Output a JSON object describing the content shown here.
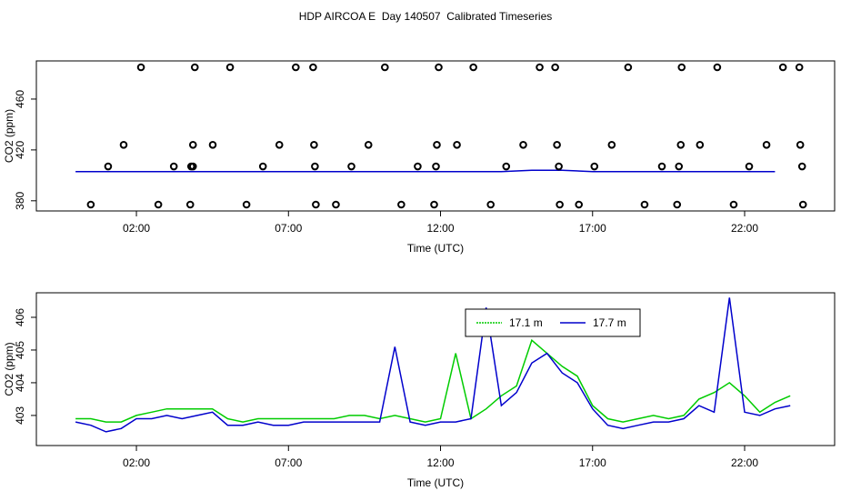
{
  "chart_data": [
    {
      "type": "scatter",
      "title": "HDP AIRCOA E  Day 140507  Calibrated Timeseries",
      "x_label": "Time (UTC)",
      "y_label": "CO2 (ppm)",
      "xlim": [
        -1.29,
        24.96
      ],
      "ylim": [
        372,
        490
      ],
      "xticks": [
        {
          "value": 2,
          "label": "02:00"
        },
        {
          "value": 7,
          "label": "07:00"
        },
        {
          "value": 12,
          "label": "12:00"
        },
        {
          "value": 17,
          "label": "17:00"
        },
        {
          "value": 22,
          "label": "22:00"
        }
      ],
      "yticks": [
        380,
        420,
        460
      ],
      "points": {
        "color": "#000000",
        "x": [
          2.15,
          3.92,
          5.08,
          7.24,
          7.81,
          10.17,
          11.94,
          13.08,
          15.26,
          15.77,
          18.17,
          19.93,
          21.1,
          23.26,
          23.8,
          1.58,
          3.86,
          4.51,
          6.7,
          7.84,
          9.63,
          11.88,
          12.54,
          14.72,
          15.83,
          17.63,
          19.9,
          20.53,
          22.72,
          23.83,
          1.07,
          3.23,
          3.8,
          3.86,
          6.16,
          7.87,
          9.07,
          11.25,
          11.85,
          14.16,
          15.89,
          17.06,
          19.28,
          19.84,
          22.15,
          23.89,
          0.5,
          2.72,
          3.77,
          5.62,
          7.9,
          8.56,
          10.71,
          11.79,
          13.65,
          15.92,
          16.55,
          18.71,
          19.78,
          21.64,
          23.92
        ],
        "values": [
          485,
          485,
          485,
          485,
          485,
          485,
          485,
          485,
          485,
          485,
          485,
          485,
          485,
          485,
          485,
          424,
          424,
          424,
          424,
          424,
          424,
          424,
          424,
          424,
          424,
          424,
          424,
          424,
          424,
          424,
          407,
          407,
          407,
          407,
          407,
          407,
          407,
          407,
          407,
          407,
          407,
          407,
          407,
          407,
          407,
          407,
          377,
          377,
          377,
          377,
          377,
          377,
          377,
          377,
          377,
          377,
          377,
          377,
          377,
          377,
          377
        ]
      },
      "line": {
        "color": "#0000cc",
        "x": [
          0,
          1,
          2,
          3,
          4,
          5,
          6,
          7,
          8,
          9,
          10,
          11,
          12,
          13,
          14,
          15,
          16,
          17,
          18,
          19,
          20,
          21,
          22,
          23
        ],
        "values": [
          403,
          403,
          403,
          403,
          403,
          403,
          403,
          403,
          403,
          403,
          403,
          403,
          403,
          403,
          403,
          404,
          404,
          403,
          403,
          403,
          403,
          403,
          403,
          403
        ]
      }
    },
    {
      "type": "line",
      "x_label": "Time (UTC)",
      "y_label": "CO2 (ppm)",
      "legend": "top",
      "xlim": [
        -1.29,
        24.96
      ],
      "ylim": [
        402.08,
        406.75
      ],
      "xticks": [
        {
          "value": 2,
          "label": "02:00"
        },
        {
          "value": 7,
          "label": "07:00"
        },
        {
          "value": 12,
          "label": "12:00"
        },
        {
          "value": 17,
          "label": "17:00"
        },
        {
          "value": 22,
          "label": "22:00"
        }
      ],
      "yticks": [
        403,
        404,
        405,
        406
      ],
      "x": [
        0,
        0.5,
        1,
        1.5,
        2,
        2.5,
        3,
        3.5,
        4,
        4.5,
        5,
        5.5,
        6,
        6.5,
        7,
        7.5,
        8,
        8.5,
        9,
        9.5,
        10,
        10.5,
        11,
        11.5,
        12,
        12.5,
        13,
        13.5,
        14,
        14.5,
        15,
        15.5,
        16,
        16.5,
        17,
        17.5,
        18,
        18.5,
        19,
        19.5,
        20,
        20.5,
        21,
        21.5,
        22,
        22.5,
        23,
        23.5
      ],
      "series": [
        {
          "name": "17.1 m",
          "color": "#00cc00",
          "values": [
            402.9,
            402.9,
            402.8,
            402.8,
            403.0,
            403.1,
            403.2,
            403.2,
            403.2,
            403.2,
            402.9,
            402.8,
            402.9,
            402.9,
            402.9,
            402.9,
            402.9,
            402.9,
            403.0,
            403.0,
            402.9,
            403.0,
            402.9,
            402.8,
            402.9,
            404.9,
            402.9,
            403.2,
            403.6,
            403.9,
            405.3,
            404.9,
            404.5,
            404.2,
            403.3,
            402.9,
            402.8,
            402.9,
            403.0,
            402.9,
            403.0,
            403.5,
            403.7,
            404.0,
            403.6,
            403.1,
            403.4,
            403.6
          ]
        },
        {
          "name": "17.7 m",
          "color": "#0000cc",
          "values": [
            402.8,
            402.7,
            402.5,
            402.6,
            402.9,
            402.9,
            403.0,
            402.9,
            403.0,
            403.1,
            402.7,
            402.7,
            402.8,
            402.7,
            402.7,
            402.8,
            402.8,
            402.8,
            402.8,
            402.8,
            402.8,
            405.1,
            402.8,
            402.7,
            402.8,
            402.8,
            402.9,
            406.3,
            403.3,
            403.7,
            404.6,
            404.9,
            404.3,
            404.0,
            403.2,
            402.7,
            402.6,
            402.7,
            402.8,
            402.8,
            402.9,
            403.3,
            403.1,
            406.6,
            403.1,
            403.0,
            403.2,
            403.3
          ]
        }
      ]
    }
  ]
}
